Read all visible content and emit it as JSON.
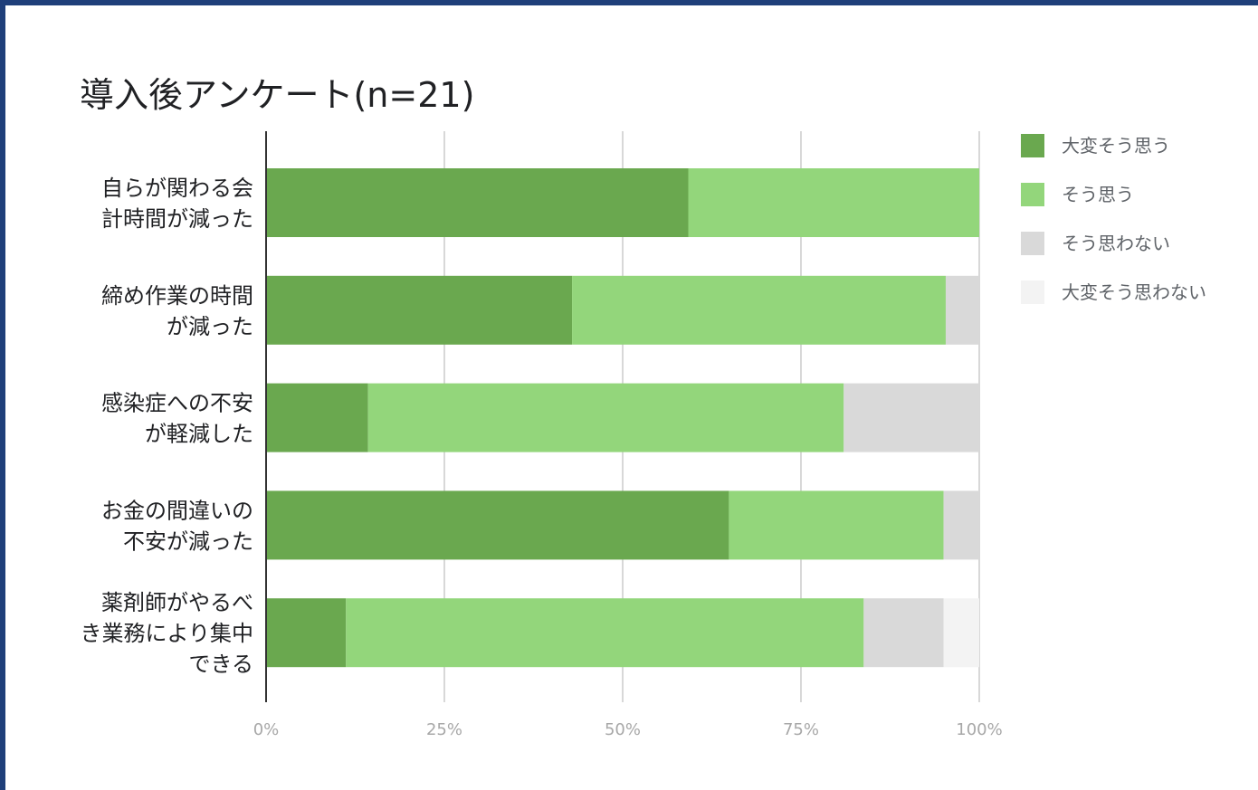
{
  "chart_data": {
    "type": "bar",
    "orientation": "horizontal",
    "stacked": "percent",
    "title": "導入後アンケート(n=21)",
    "categories": [
      "自らが関わる会\n計時間が減った",
      "締め作業の時間\nが減った",
      "感染症への不安\nが軽減した",
      "お金の間違いの\n不安が減った",
      "薬剤師がやるべ\nき業務により集中\nできる"
    ],
    "series": [
      {
        "name": "大変そう思う",
        "color": "#6aa84f",
        "values": [
          59.2,
          42.9,
          14.3,
          64.9,
          11.2
        ]
      },
      {
        "name": "そう思う",
        "color": "#93d67b",
        "values": [
          40.8,
          52.4,
          66.7,
          30.1,
          72.6
        ]
      },
      {
        "name": "そう思わない",
        "color": "#d9d9d9",
        "values": [
          0,
          4.7,
          19.0,
          5.0,
          11.2
        ]
      },
      {
        "name": "大変そう思わない",
        "color": "#f3f3f3",
        "values": [
          0,
          0,
          0,
          0,
          5.0
        ]
      }
    ],
    "xlim": [
      0,
      100
    ],
    "xticks": [
      "0%",
      "25%",
      "50%",
      "75%",
      "100%"
    ],
    "grid": true,
    "legend_position": "right"
  }
}
